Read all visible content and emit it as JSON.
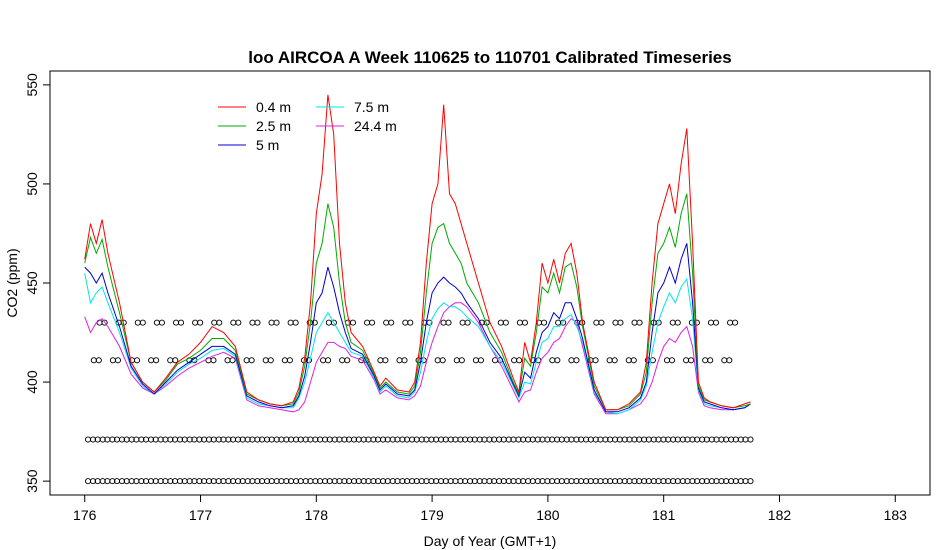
{
  "chart_data": {
    "type": "line",
    "title": "loo AIRCOA A  Week 110625 to 110701  Calibrated Timeseries",
    "xlabel": "Day of Year (GMT+1)",
    "ylabel": "CO2 (ppm)",
    "xlim": [
      175.7,
      183.3
    ],
    "ylim": [
      343,
      557
    ],
    "xticks": [
      176,
      177,
      178,
      179,
      180,
      181,
      182,
      183
    ],
    "yticks": [
      350,
      400,
      450,
      500,
      550
    ],
    "legend_position": "top-left",
    "grid": false,
    "series": [
      {
        "name": "0.4 m",
        "color": "#ff0000",
        "x": [
          176.0,
          176.05,
          176.1,
          176.15,
          176.2,
          176.3,
          176.4,
          176.5,
          176.6,
          176.7,
          176.8,
          176.9,
          177.0,
          177.1,
          177.2,
          177.3,
          177.4,
          177.5,
          177.6,
          177.7,
          177.8,
          177.85,
          177.9,
          177.95,
          178.0,
          178.05,
          178.1,
          178.15,
          178.2,
          178.25,
          178.3,
          178.4,
          178.5,
          178.55,
          178.6,
          178.7,
          178.8,
          178.85,
          178.9,
          178.95,
          179.0,
          179.05,
          179.1,
          179.15,
          179.2,
          179.25,
          179.3,
          179.4,
          179.5,
          179.6,
          179.7,
          179.75,
          179.8,
          179.85,
          179.9,
          179.95,
          180.0,
          180.05,
          180.1,
          180.15,
          180.2,
          180.25,
          180.3,
          180.4,
          180.5,
          180.6,
          180.7,
          180.8,
          180.85,
          180.9,
          180.95,
          181.0,
          181.05,
          181.1,
          181.15,
          181.2,
          181.25,
          181.3,
          181.35,
          181.4,
          181.5,
          181.6,
          181.7,
          181.75
        ],
        "y": [
          462,
          480,
          470,
          482,
          465,
          440,
          410,
          400,
          395,
          402,
          410,
          414,
          420,
          428,
          425,
          418,
          395,
          391,
          389,
          388,
          390,
          397,
          412,
          440,
          485,
          505,
          545,
          525,
          470,
          440,
          425,
          418,
          405,
          398,
          402,
          396,
          395,
          400,
          420,
          460,
          490,
          500,
          540,
          495,
          490,
          480,
          470,
          450,
          430,
          418,
          402,
          395,
          420,
          410,
          430,
          460,
          450,
          462,
          450,
          465,
          470,
          455,
          430,
          400,
          386,
          386,
          389,
          395,
          410,
          450,
          480,
          490,
          500,
          485,
          510,
          528,
          470,
          400,
          392,
          390,
          388,
          387,
          389,
          390
        ]
      },
      {
        "name": "2.5 m",
        "color": "#00aa00",
        "x": [
          176.0,
          176.05,
          176.1,
          176.15,
          176.2,
          176.3,
          176.4,
          176.5,
          176.6,
          176.7,
          176.8,
          176.9,
          177.0,
          177.1,
          177.2,
          177.3,
          177.4,
          177.5,
          177.6,
          177.7,
          177.8,
          177.85,
          177.9,
          177.95,
          178.0,
          178.05,
          178.1,
          178.15,
          178.2,
          178.25,
          178.3,
          178.4,
          178.5,
          178.55,
          178.6,
          178.7,
          178.8,
          178.85,
          178.9,
          178.95,
          179.0,
          179.05,
          179.1,
          179.15,
          179.2,
          179.25,
          179.3,
          179.4,
          179.5,
          179.6,
          179.7,
          179.75,
          179.8,
          179.85,
          179.9,
          179.95,
          180.0,
          180.05,
          180.1,
          180.15,
          180.2,
          180.25,
          180.3,
          180.4,
          180.5,
          180.6,
          180.7,
          180.8,
          180.85,
          180.9,
          180.95,
          181.0,
          181.05,
          181.1,
          181.15,
          181.2,
          181.25,
          181.3,
          181.35,
          181.4,
          181.5,
          181.6,
          181.7,
          181.75
        ],
        "y": [
          460,
          473,
          465,
          472,
          458,
          435,
          410,
          400,
          395,
          401,
          409,
          412,
          416,
          422,
          422,
          416,
          394,
          391,
          389,
          388,
          389,
          395,
          408,
          430,
          460,
          470,
          490,
          478,
          450,
          430,
          420,
          416,
          404,
          397,
          400,
          395,
          394,
          398,
          415,
          445,
          470,
          478,
          480,
          470,
          465,
          460,
          450,
          440,
          425,
          415,
          400,
          394,
          412,
          408,
          425,
          448,
          445,
          455,
          445,
          458,
          460,
          448,
          428,
          398,
          386,
          386,
          388,
          394,
          405,
          440,
          465,
          470,
          478,
          468,
          485,
          495,
          455,
          398,
          391,
          390,
          388,
          387,
          388,
          389
        ]
      },
      {
        "name": "5 m",
        "color": "#0000cc",
        "x": [
          176.0,
          176.05,
          176.1,
          176.15,
          176.2,
          176.3,
          176.4,
          176.5,
          176.6,
          176.7,
          176.8,
          176.9,
          177.0,
          177.1,
          177.2,
          177.3,
          177.4,
          177.5,
          177.6,
          177.7,
          177.8,
          177.85,
          177.9,
          177.95,
          178.0,
          178.05,
          178.1,
          178.15,
          178.2,
          178.25,
          178.3,
          178.4,
          178.5,
          178.55,
          178.6,
          178.7,
          178.8,
          178.85,
          178.9,
          178.95,
          179.0,
          179.05,
          179.1,
          179.15,
          179.2,
          179.25,
          179.3,
          179.4,
          179.5,
          179.6,
          179.7,
          179.75,
          179.8,
          179.85,
          179.9,
          179.95,
          180.0,
          180.05,
          180.1,
          180.15,
          180.2,
          180.25,
          180.3,
          180.4,
          180.5,
          180.6,
          180.7,
          180.8,
          180.85,
          180.9,
          180.95,
          181.0,
          181.05,
          181.1,
          181.15,
          181.2,
          181.25,
          181.3,
          181.35,
          181.4,
          181.5,
          181.6,
          181.7,
          181.75
        ],
        "y": [
          458,
          455,
          450,
          455,
          445,
          428,
          408,
          399,
          394,
          400,
          406,
          410,
          414,
          418,
          418,
          414,
          393,
          390,
          388,
          387,
          388,
          393,
          403,
          420,
          440,
          445,
          458,
          448,
          435,
          425,
          417,
          414,
          403,
          396,
          399,
          394,
          393,
          396,
          410,
          430,
          445,
          450,
          453,
          450,
          448,
          445,
          440,
          432,
          420,
          412,
          399,
          393,
          405,
          402,
          415,
          425,
          428,
          435,
          432,
          440,
          440,
          432,
          422,
          396,
          385,
          385,
          387,
          392,
          400,
          425,
          445,
          450,
          458,
          450,
          462,
          470,
          440,
          397,
          390,
          389,
          387,
          386,
          387,
          389
        ]
      },
      {
        "name": "7.5 m",
        "color": "#00e5ee",
        "x": [
          176.0,
          176.05,
          176.1,
          176.15,
          176.2,
          176.3,
          176.4,
          176.5,
          176.6,
          176.7,
          176.8,
          176.9,
          177.0,
          177.1,
          177.2,
          177.3,
          177.4,
          177.5,
          177.6,
          177.7,
          177.8,
          177.85,
          177.9,
          177.95,
          178.0,
          178.05,
          178.1,
          178.15,
          178.2,
          178.25,
          178.3,
          178.4,
          178.5,
          178.55,
          178.6,
          178.7,
          178.8,
          178.85,
          178.9,
          178.95,
          179.0,
          179.05,
          179.1,
          179.15,
          179.2,
          179.25,
          179.3,
          179.4,
          179.5,
          179.6,
          179.7,
          179.75,
          179.8,
          179.85,
          179.9,
          179.95,
          180.0,
          180.05,
          180.1,
          180.15,
          180.2,
          180.25,
          180.3,
          180.4,
          180.5,
          180.6,
          180.7,
          180.8,
          180.85,
          180.9,
          180.95,
          181.0,
          181.05,
          181.1,
          181.15,
          181.2,
          181.25,
          181.3,
          181.35,
          181.4,
          181.5,
          181.6,
          181.7,
          181.75
        ],
        "y": [
          455,
          440,
          445,
          448,
          440,
          425,
          407,
          398,
          394,
          399,
          405,
          409,
          412,
          416,
          417,
          413,
          392,
          389,
          388,
          387,
          387,
          392,
          400,
          412,
          425,
          430,
          435,
          430,
          425,
          420,
          415,
          413,
          402,
          395,
          398,
          393,
          392,
          395,
          405,
          420,
          432,
          437,
          440,
          438,
          438,
          436,
          433,
          428,
          418,
          410,
          398,
          392,
          400,
          399,
          410,
          420,
          422,
          428,
          428,
          432,
          434,
          428,
          420,
          395,
          385,
          384,
          386,
          391,
          398,
          415,
          430,
          438,
          445,
          440,
          448,
          452,
          432,
          396,
          389,
          388,
          387,
          386,
          387,
          389
        ]
      },
      {
        "name": "24.4 m",
        "color": "#e020e0",
        "x": [
          176.0,
          176.05,
          176.1,
          176.15,
          176.2,
          176.3,
          176.4,
          176.5,
          176.6,
          176.7,
          176.8,
          176.9,
          177.0,
          177.1,
          177.2,
          177.3,
          177.4,
          177.5,
          177.6,
          177.7,
          177.8,
          177.85,
          177.9,
          177.95,
          178.0,
          178.05,
          178.1,
          178.15,
          178.2,
          178.25,
          178.3,
          178.4,
          178.5,
          178.55,
          178.6,
          178.7,
          178.8,
          178.85,
          178.9,
          178.95,
          179.0,
          179.05,
          179.1,
          179.15,
          179.2,
          179.25,
          179.3,
          179.4,
          179.5,
          179.6,
          179.7,
          179.75,
          179.8,
          179.85,
          179.9,
          179.95,
          180.0,
          180.05,
          180.1,
          180.15,
          180.2,
          180.25,
          180.3,
          180.4,
          180.5,
          180.6,
          180.7,
          180.8,
          180.85,
          180.9,
          180.95,
          181.0,
          181.05,
          181.1,
          181.15,
          181.2,
          181.25,
          181.3,
          181.35,
          181.4,
          181.5,
          181.6,
          181.7,
          181.75
        ],
        "y": [
          433,
          425,
          430,
          432,
          428,
          418,
          404,
          397,
          394,
          398,
          403,
          407,
          410,
          413,
          415,
          412,
          391,
          388,
          387,
          386,
          385,
          386,
          390,
          400,
          410,
          415,
          420,
          420,
          418,
          417,
          413,
          411,
          401,
          394,
          396,
          392,
          391,
          393,
          398,
          410,
          420,
          428,
          435,
          438,
          440,
          440,
          438,
          430,
          418,
          408,
          396,
          390,
          395,
          396,
          405,
          412,
          415,
          420,
          422,
          428,
          432,
          430,
          418,
          394,
          384,
          384,
          386,
          389,
          393,
          400,
          410,
          418,
          422,
          420,
          425,
          428,
          418,
          395,
          388,
          387,
          386,
          386,
          387,
          389
        ]
      }
    ],
    "marker_rows": [
      {
        "y": 430,
        "x_start": 176.15,
        "x_end": 181.7,
        "step": 0.165
      },
      {
        "y": 411,
        "x_start": 176.1,
        "x_end": 181.7,
        "step": 0.165
      },
      {
        "y": 371,
        "x_start": 176.05,
        "x_end": 181.75,
        "step": 0.0835
      },
      {
        "y": 350,
        "x_start": 176.05,
        "x_end": 181.75,
        "step": 0.0835
      }
    ]
  }
}
